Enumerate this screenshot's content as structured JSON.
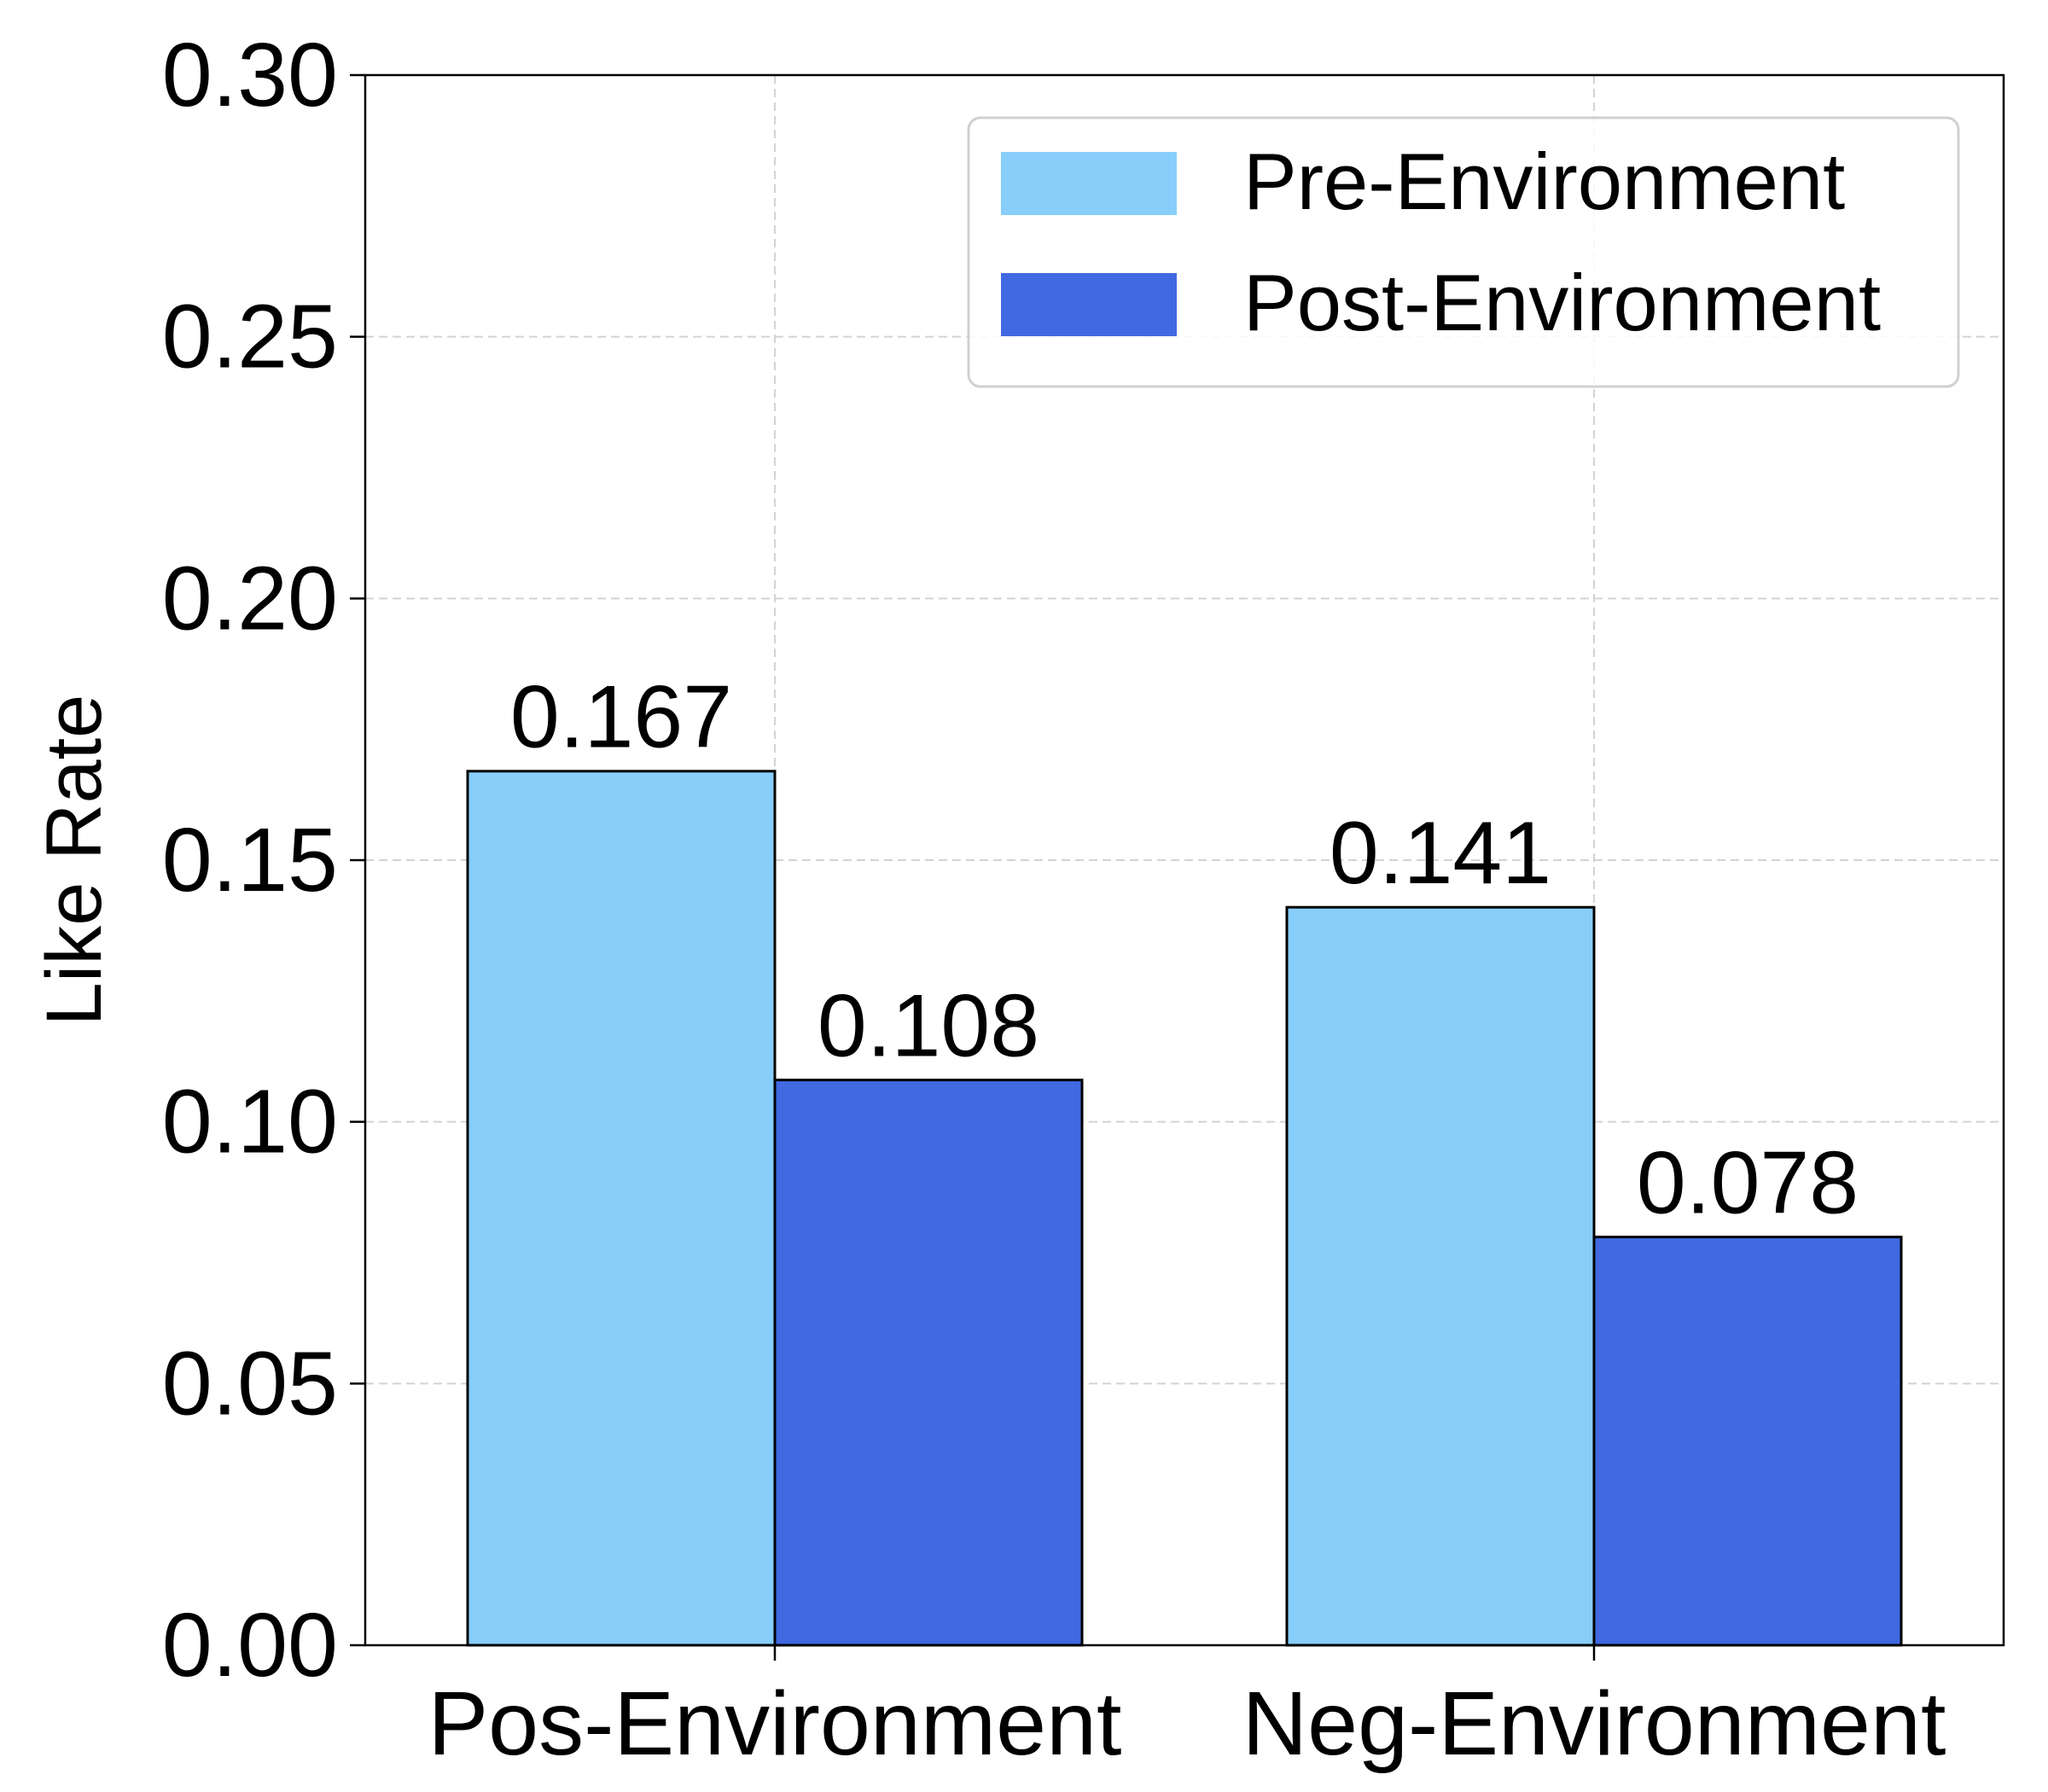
{
  "chart_data": {
    "type": "bar",
    "categories": [
      "Pos-Environment",
      "Neg-Environment"
    ],
    "series": [
      {
        "name": "Pre-Environment",
        "values": [
          0.167,
          0.141
        ],
        "color": "#87CEFA",
        "labels": [
          "0.167",
          "0.141"
        ]
      },
      {
        "name": "Post-Environment",
        "values": [
          0.108,
          0.078
        ],
        "color": "#4169E1",
        "labels": [
          "0.108",
          "0.078"
        ]
      }
    ],
    "ylabel": "Like Rate",
    "xlabel": "",
    "ylim": [
      0,
      0.3
    ],
    "yticks": [
      0.0,
      0.05,
      0.1,
      0.15,
      0.2,
      0.25,
      0.3
    ],
    "ytick_labels": [
      "0.00",
      "0.05",
      "0.10",
      "0.15",
      "0.20",
      "0.25",
      "0.30"
    ],
    "grid": true,
    "legend_position": "top-right"
  }
}
